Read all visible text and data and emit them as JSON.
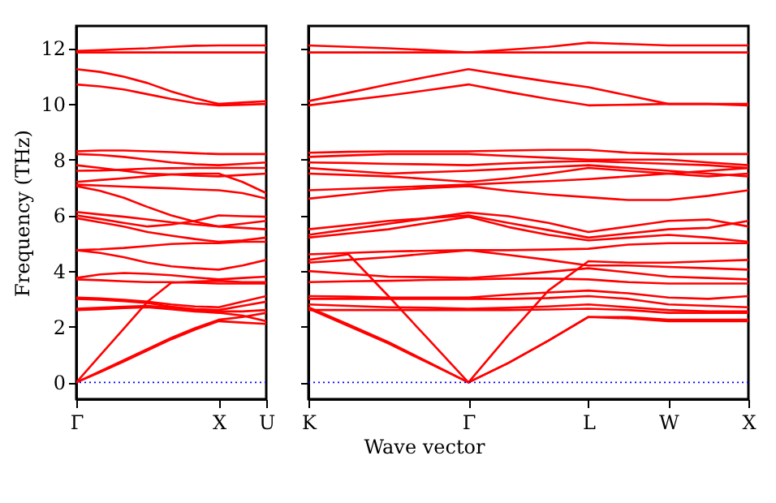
{
  "chart_data": [
    {
      "type": "line",
      "ylabel": "Frequency (THz)",
      "categories": [
        "Γ",
        null,
        null,
        null,
        null,
        null,
        "X",
        null,
        "U"
      ],
      "ylim": [
        -0.6,
        12.8
      ],
      "yticks": [
        0,
        2,
        4,
        6,
        8,
        10,
        12
      ],
      "ref_lines": [
        {
          "axis": "y",
          "value": 0,
          "color": "#0000ff",
          "line_style": "dotted"
        }
      ],
      "series": [
        {
          "color": "#ff0000",
          "values": [
            11.85,
            11.85,
            11.85,
            11.85,
            11.85,
            11.85,
            11.85,
            11.85,
            11.85
          ]
        },
        {
          "color": "#ff0000",
          "values": [
            11.9,
            11.93,
            11.97,
            12.0,
            12.05,
            12.09,
            12.1,
            12.1,
            12.1
          ]
        },
        {
          "color": "#ff0000",
          "values": [
            11.25,
            11.15,
            10.98,
            10.75,
            10.45,
            10.2,
            10.0,
            10.05,
            10.1
          ]
        },
        {
          "color": "#ff0000",
          "values": [
            10.7,
            10.63,
            10.52,
            10.35,
            10.18,
            10.03,
            9.95,
            9.97,
            10.0
          ]
        },
        {
          "color": "#ff0000",
          "values": [
            8.3,
            8.33,
            8.33,
            8.3,
            8.27,
            8.23,
            8.2,
            8.2,
            8.2
          ]
        },
        {
          "color": "#ff0000",
          "values": [
            8.2,
            8.17,
            8.1,
            8.0,
            7.9,
            7.83,
            7.8,
            7.85,
            7.9
          ]
        },
        {
          "color": "#ff0000",
          "values": [
            7.8,
            7.7,
            7.6,
            7.5,
            7.47,
            7.43,
            7.4,
            7.45,
            7.5
          ]
        },
        {
          "color": "#ff0000",
          "values": [
            7.6,
            7.61,
            7.64,
            7.68,
            7.69,
            7.7,
            7.7,
            7.7,
            7.7
          ]
        },
        {
          "color": "#ff0000",
          "values": [
            7.2,
            7.27,
            7.33,
            7.4,
            7.47,
            7.5,
            7.5,
            7.2,
            6.8
          ]
        },
        {
          "color": "#ff0000",
          "values": [
            7.1,
            7.07,
            7.03,
            7.0,
            6.97,
            6.93,
            6.9,
            6.8,
            6.6
          ]
        },
        {
          "color": "#ff0000",
          "values": [
            7.05,
            6.88,
            6.63,
            6.3,
            6.0,
            5.77,
            5.6,
            5.55,
            5.5
          ]
        },
        {
          "color": "#ff0000",
          "values": [
            6.12,
            6.03,
            5.95,
            5.85,
            5.75,
            5.67,
            5.6,
            5.7,
            5.8
          ]
        },
        {
          "color": "#ff0000",
          "values": [
            6.0,
            5.87,
            5.73,
            5.6,
            5.67,
            5.8,
            6.0,
            5.97,
            5.95
          ]
        },
        {
          "color": "#ff0000",
          "values": [
            5.9,
            5.75,
            5.6,
            5.4,
            5.27,
            5.15,
            5.05,
            5.1,
            5.2
          ]
        },
        {
          "color": "#ff0000",
          "values": [
            4.75,
            4.78,
            4.83,
            4.9,
            4.97,
            5.0,
            5.0,
            5.05,
            5.05
          ]
        },
        {
          "color": "#ff0000",
          "values": [
            4.75,
            4.65,
            4.5,
            4.3,
            4.17,
            4.1,
            4.05,
            4.2,
            4.4
          ]
        },
        {
          "color": "#ff0000",
          "values": [
            3.75,
            3.88,
            3.93,
            3.9,
            3.85,
            3.77,
            3.7,
            3.75,
            3.8
          ]
        },
        {
          "color": "#ff0000",
          "values": [
            3.7,
            3.67,
            3.63,
            3.6,
            3.6,
            3.58,
            3.55,
            3.55,
            3.55
          ]
        },
        {
          "color": "#ff0000",
          "values": [
            0,
            0.97,
            1.93,
            2.9,
            3.58,
            3.62,
            3.65,
            3.6,
            3.6
          ]
        },
        {
          "color": "#ff0000",
          "values": [
            3.05,
            3.02,
            2.97,
            2.9,
            2.8,
            2.73,
            2.7,
            2.9,
            3.1
          ]
        },
        {
          "color": "#ff0000",
          "values": [
            3.0,
            2.97,
            2.92,
            2.85,
            2.72,
            2.63,
            2.6,
            2.75,
            2.9
          ]
        },
        {
          "color": "#ff0000",
          "values": [
            2.65,
            2.68,
            2.72,
            2.75,
            2.68,
            2.6,
            2.55,
            2.55,
            2.6
          ]
        },
        {
          "color": "#ff0000",
          "values": [
            2.6,
            2.63,
            2.67,
            2.7,
            2.63,
            2.55,
            2.5,
            2.4,
            2.2
          ]
        },
        {
          "color": "#ff0000",
          "values": [
            0,
            0.4,
            0.8,
            1.2,
            1.6,
            1.95,
            2.25,
            2.35,
            2.5
          ]
        },
        {
          "color": "#ff0000",
          "values": [
            0,
            0.37,
            0.75,
            1.15,
            1.55,
            1.9,
            2.2,
            2.15,
            2.1
          ]
        }
      ]
    },
    {
      "type": "line",
      "xlabel": "Wave vector",
      "categories": [
        "K",
        null,
        null,
        null,
        "Γ",
        null,
        null,
        "L",
        null,
        "W",
        null,
        "X"
      ],
      "ylim": [
        -0.6,
        12.8
      ],
      "yticks": [
        0,
        2,
        4,
        6,
        8,
        10,
        12
      ],
      "tick_labels": "x",
      "ref_lines": [
        {
          "axis": "y",
          "value": 0,
          "color": "#0000ff",
          "line_style": "dotted"
        }
      ],
      "series": [
        {
          "color": "#ff0000",
          "values": [
            11.85,
            11.85,
            11.85,
            11.85,
            11.85,
            11.85,
            11.85,
            11.85,
            11.85,
            11.85,
            11.85,
            11.85
          ]
        },
        {
          "color": "#ff0000",
          "values": [
            12.1,
            12.05,
            12.0,
            11.93,
            11.85,
            11.95,
            12.05,
            12.2,
            12.15,
            12.1,
            12.1,
            12.1
          ]
        },
        {
          "color": "#ff0000",
          "values": [
            10.1,
            10.4,
            10.7,
            10.98,
            11.25,
            11.02,
            10.8,
            10.6,
            10.3,
            10.0,
            10.0,
            10.0
          ]
        },
        {
          "color": "#ff0000",
          "values": [
            9.95,
            10.13,
            10.3,
            10.5,
            10.7,
            10.43,
            10.18,
            9.95,
            9.97,
            10.0,
            10.0,
            9.95
          ]
        },
        {
          "color": "#ff0000",
          "values": [
            8.25,
            8.28,
            8.3,
            8.3,
            8.3,
            8.33,
            8.35,
            8.35,
            8.25,
            8.2,
            8.2,
            8.2
          ]
        },
        {
          "color": "#ff0000",
          "values": [
            8.1,
            8.15,
            8.2,
            8.2,
            8.2,
            8.13,
            8.07,
            8.0,
            8.0,
            8.0,
            7.9,
            7.8
          ]
        },
        {
          "color": "#ff0000",
          "values": [
            7.9,
            7.88,
            7.85,
            7.83,
            7.8,
            7.87,
            7.92,
            7.95,
            7.9,
            7.85,
            7.8,
            7.7
          ]
        },
        {
          "color": "#ff0000",
          "values": [
            7.7,
            7.6,
            7.5,
            7.55,
            7.6,
            7.67,
            7.73,
            7.8,
            7.7,
            7.6,
            7.5,
            7.4
          ]
        },
        {
          "color": "#ff0000",
          "values": [
            7.5,
            7.45,
            7.4,
            7.3,
            7.2,
            7.33,
            7.5,
            7.7,
            7.6,
            7.5,
            7.4,
            7.5
          ]
        },
        {
          "color": "#ff0000",
          "values": [
            6.9,
            6.95,
            7.0,
            7.05,
            7.1,
            7.17,
            7.23,
            7.3,
            7.4,
            7.5,
            7.6,
            7.7
          ]
        },
        {
          "color": "#ff0000",
          "values": [
            6.6,
            6.75,
            6.9,
            6.98,
            7.05,
            6.88,
            6.75,
            6.65,
            6.55,
            6.55,
            6.7,
            6.9
          ]
        },
        {
          "color": "#ff0000",
          "values": [
            5.3,
            5.5,
            5.7,
            5.9,
            6.1,
            5.97,
            5.73,
            5.4,
            5.6,
            5.8,
            5.85,
            5.6
          ]
        },
        {
          "color": "#ff0000",
          "values": [
            5.5,
            5.65,
            5.8,
            5.9,
            6.0,
            5.73,
            5.47,
            5.2,
            5.35,
            5.5,
            5.55,
            5.8
          ]
        },
        {
          "color": "#ff0000",
          "values": [
            5.2,
            5.35,
            5.5,
            5.73,
            5.95,
            5.58,
            5.3,
            5.1,
            5.2,
            5.3,
            5.2,
            5.05
          ]
        },
        {
          "color": "#ff0000",
          "values": [
            4.6,
            4.65,
            4.7,
            4.73,
            4.75,
            4.75,
            4.77,
            4.8,
            4.95,
            5.0,
            5.0,
            5.0
          ]
        },
        {
          "color": "#ff0000",
          "values": [
            4.3,
            4.4,
            4.5,
            4.63,
            4.75,
            4.58,
            4.4,
            4.2,
            4.2,
            4.15,
            4.1,
            4.05
          ]
        },
        {
          "color": "#ff0000",
          "values": [
            4.0,
            3.9,
            3.8,
            3.78,
            3.75,
            3.85,
            3.97,
            4.1,
            3.95,
            3.8,
            3.75,
            3.7
          ]
        },
        {
          "color": "#ff0000",
          "values": [
            3.6,
            3.63,
            3.65,
            3.68,
            3.7,
            3.73,
            3.73,
            3.7,
            3.6,
            3.55,
            3.55,
            3.55
          ]
        },
        {
          "color": "#ff0000",
          "values": [
            4.4,
            4.6,
            3.1,
            1.55,
            0,
            1.7,
            3.3,
            4.35,
            4.3,
            4.3,
            4.35,
            4.4
          ]
        },
        {
          "color": "#ff0000",
          "values": [
            3.1,
            3.08,
            3.05,
            3.05,
            3.05,
            3.15,
            3.23,
            3.3,
            3.2,
            3.05,
            3.0,
            3.1
          ]
        },
        {
          "color": "#ff0000",
          "values": [
            3.0,
            3.0,
            3.0,
            3.0,
            3.0,
            3.0,
            3.03,
            3.1,
            3.0,
            2.8,
            2.75,
            2.7
          ]
        },
        {
          "color": "#ff0000",
          "values": [
            2.8,
            2.75,
            2.7,
            2.68,
            2.65,
            2.68,
            2.73,
            2.8,
            2.7,
            2.6,
            2.55,
            2.55
          ]
        },
        {
          "color": "#ff0000",
          "values": [
            2.6,
            2.6,
            2.6,
            2.6,
            2.6,
            2.6,
            2.62,
            2.65,
            2.6,
            2.5,
            2.5,
            2.5
          ]
        },
        {
          "color": "#ff0000",
          "values": [
            2.7,
            2.08,
            1.45,
            0.73,
            0,
            0.7,
            1.5,
            2.35,
            2.35,
            2.25,
            2.25,
            2.25
          ]
        },
        {
          "color": "#ff0000",
          "values": [
            2.65,
            2.03,
            1.4,
            0.7,
            0,
            0.7,
            1.5,
            2.35,
            2.3,
            2.2,
            2.2,
            2.2
          ]
        }
      ]
    }
  ]
}
